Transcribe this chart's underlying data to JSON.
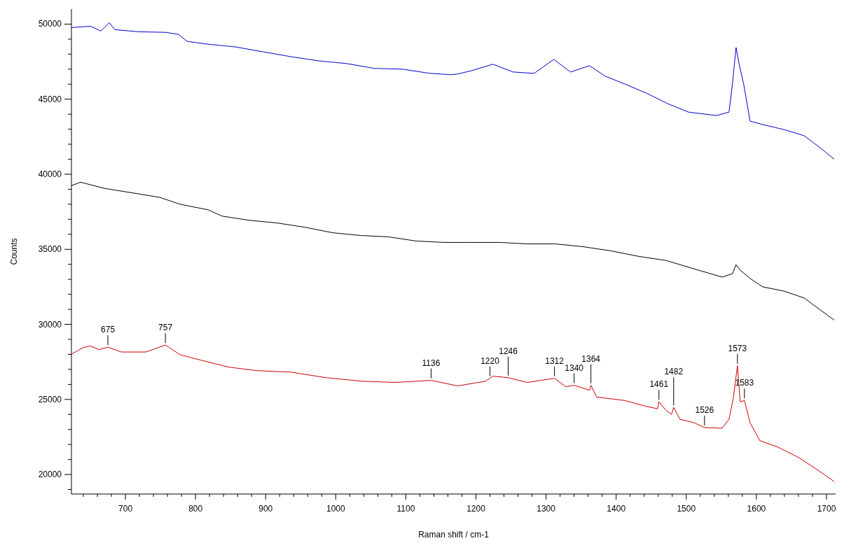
{
  "chart_data": {
    "type": "line",
    "xlabel": "Raman shift / cm-1",
    "ylabel": "Counts",
    "xlim": [
      623,
      1713
    ],
    "ylim": [
      18700,
      51000
    ],
    "xticks": [
      {
        "value": 640,
        "label": null
      },
      {
        "value": 660,
        "label": null
      },
      {
        "value": 680,
        "label": null
      },
      700,
      {
        "value": 720,
        "label": null
      },
      {
        "value": 740,
        "label": null
      },
      {
        "value": 760,
        "label": null
      },
      {
        "value": 780,
        "label": null
      },
      800,
      {
        "value": 820,
        "label": null
      },
      {
        "value": 840,
        "label": null
      },
      {
        "value": 860,
        "label": null
      },
      {
        "value": 880,
        "label": null
      },
      900,
      {
        "value": 920,
        "label": null
      },
      {
        "value": 940,
        "label": null
      },
      {
        "value": 960,
        "label": null
      },
      {
        "value": 980,
        "label": null
      },
      1000,
      {
        "value": 1020,
        "label": null
      },
      {
        "value": 1040,
        "label": null
      },
      {
        "value": 1060,
        "label": null
      },
      {
        "value": 1080,
        "label": null
      },
      1100,
      {
        "value": 1120,
        "label": null
      },
      {
        "value": 1140,
        "label": null
      },
      {
        "value": 1160,
        "label": null
      },
      {
        "value": 1180,
        "label": null
      },
      1200,
      {
        "value": 1220,
        "label": null
      },
      {
        "value": 1240,
        "label": null
      },
      {
        "value": 1260,
        "label": null
      },
      {
        "value": 1280,
        "label": null
      },
      1300,
      {
        "value": 1320,
        "label": null
      },
      {
        "value": 1340,
        "label": null
      },
      {
        "value": 1360,
        "label": null
      },
      {
        "value": 1380,
        "label": null
      },
      1400,
      {
        "value": 1420,
        "label": null
      },
      {
        "value": 1440,
        "label": null
      },
      {
        "value": 1460,
        "label": null
      },
      {
        "value": 1480,
        "label": null
      },
      1500,
      {
        "value": 1520,
        "label": null
      },
      {
        "value": 1540,
        "label": null
      },
      {
        "value": 1560,
        "label": null
      },
      {
        "value": 1580,
        "label": null
      },
      1600,
      {
        "value": 1620,
        "label": null
      },
      {
        "value": 1640,
        "label": null
      },
      {
        "value": 1660,
        "label": null
      },
      {
        "value": 1680,
        "label": null
      },
      1700
    ],
    "yticks": [
      {
        "value": 19000,
        "label": null
      },
      20000,
      {
        "value": 21000,
        "label": null
      },
      {
        "value": 22000,
        "label": null
      },
      {
        "value": 23000,
        "label": null
      },
      {
        "value": 24000,
        "label": null
      },
      25000,
      {
        "value": 26000,
        "label": null
      },
      {
        "value": 27000,
        "label": null
      },
      {
        "value": 28000,
        "label": null
      },
      {
        "value": 29000,
        "label": null
      },
      30000,
      {
        "value": 31000,
        "label": null
      },
      {
        "value": 32000,
        "label": null
      },
      {
        "value": 33000,
        "label": null
      },
      {
        "value": 34000,
        "label": null
      },
      35000,
      {
        "value": 36000,
        "label": null
      },
      {
        "value": 37000,
        "label": null
      },
      {
        "value": 38000,
        "label": null
      },
      {
        "value": 39000,
        "label": null
      },
      40000,
      {
        "value": 41000,
        "label": null
      },
      {
        "value": 42000,
        "label": null
      },
      {
        "value": 43000,
        "label": null
      },
      {
        "value": 44000,
        "label": null
      },
      45000,
      {
        "value": 46000,
        "label": null
      },
      {
        "value": 47000,
        "label": null
      },
      {
        "value": 48000,
        "label": null
      },
      {
        "value": 49000,
        "label": null
      },
      50000
    ],
    "marker": "none",
    "line_style": "solid",
    "series": [
      {
        "color": "#0000cc",
        "x": [
          623,
          650,
          665,
          677,
          685,
          719,
          758,
          776,
          788,
          818,
          857,
          897,
          936,
          976,
          1016,
          1055,
          1095,
          1134,
          1165,
          1174,
          1194,
          1224,
          1253,
          1283,
          1311,
          1335,
          1362,
          1384,
          1414,
          1444,
          1474,
          1503,
          1543,
          1561,
          1566,
          1571,
          1576,
          1582,
          1591,
          1609,
          1639,
          1668,
          1693,
          1711
        ],
        "values": [
          49770,
          49860,
          49540,
          50090,
          49630,
          49490,
          49450,
          49310,
          48850,
          48660,
          48480,
          48150,
          47830,
          47550,
          47370,
          47050,
          47000,
          46720,
          46630,
          46680,
          46900,
          47330,
          46810,
          46720,
          47650,
          46810,
          47230,
          46540,
          45980,
          45380,
          44690,
          44140,
          43910,
          44140,
          46080,
          48440,
          47200,
          45980,
          43540,
          43310,
          42980,
          42570,
          41690,
          41000
        ]
      },
      {
        "color": "#000000",
        "x": [
          623,
          636,
          670,
          719,
          749,
          778,
          818,
          838,
          877,
          917,
          956,
          996,
          1036,
          1075,
          1115,
          1154,
          1194,
          1234,
          1273,
          1313,
          1352,
          1392,
          1432,
          1471,
          1511,
          1551,
          1566,
          1571,
          1577,
          1591,
          1609,
          1639,
          1668,
          1688,
          1711
        ],
        "values": [
          39240,
          39470,
          39060,
          38690,
          38460,
          38000,
          37630,
          37210,
          36930,
          36750,
          36470,
          36100,
          35920,
          35830,
          35550,
          35460,
          35460,
          35460,
          35360,
          35360,
          35180,
          34900,
          34530,
          34260,
          33700,
          33150,
          33380,
          33980,
          33610,
          33060,
          32500,
          32220,
          31760,
          31070,
          30290
        ]
      },
      {
        "color": "#cc0000",
        "x": [
          623,
          640,
          650,
          662,
          675,
          694,
          729,
          757,
          778,
          808,
          848,
          887,
          936,
          986,
          1036,
          1085,
          1136,
          1174,
          1214,
          1224,
          1246,
          1273,
          1312,
          1328,
          1340,
          1362,
          1364,
          1372,
          1412,
          1441,
          1459,
          1461,
          1471,
          1479,
          1482,
          1491,
          1511,
          1526,
          1551,
          1561,
          1567,
          1573,
          1577,
          1583,
          1591,
          1605,
          1630,
          1660,
          1690,
          1711
        ],
        "values": [
          28020,
          28460,
          28560,
          28320,
          28480,
          28160,
          28160,
          28620,
          27980,
          27610,
          27150,
          26920,
          26820,
          26450,
          26220,
          26130,
          26270,
          25900,
          26220,
          26550,
          26450,
          26130,
          26410,
          25850,
          25940,
          25620,
          25940,
          25160,
          24930,
          24560,
          24380,
          24840,
          24280,
          24010,
          24470,
          23680,
          23450,
          23130,
          23080,
          23680,
          25070,
          27240,
          24840,
          24930,
          23450,
          22250,
          21840,
          21140,
          20220,
          19530
        ]
      }
    ],
    "annotations": [
      {
        "text": "675",
        "x": 675,
        "y": 28480
      },
      {
        "text": "757",
        "x": 757,
        "y": 28620
      },
      {
        "text": "1136",
        "x": 1136,
        "y": 26270
      },
      {
        "text": "1220",
        "x": 1220,
        "y": 26410
      },
      {
        "text": "1246",
        "x": 1246,
        "y": 26450
      },
      {
        "text": "1312",
        "x": 1312,
        "y": 26410
      },
      {
        "text": "1340",
        "x": 1340,
        "y": 25940
      },
      {
        "text": "1364",
        "x": 1364,
        "y": 25940
      },
      {
        "text": "1461",
        "x": 1461,
        "y": 24840
      },
      {
        "text": "1482",
        "x": 1482,
        "y": 24470
      },
      {
        "text": "1526",
        "x": 1526,
        "y": 23130
      },
      {
        "text": "1573",
        "x": 1573,
        "y": 27240
      },
      {
        "text": "1583",
        "x": 1583,
        "y": 24930
      }
    ]
  }
}
